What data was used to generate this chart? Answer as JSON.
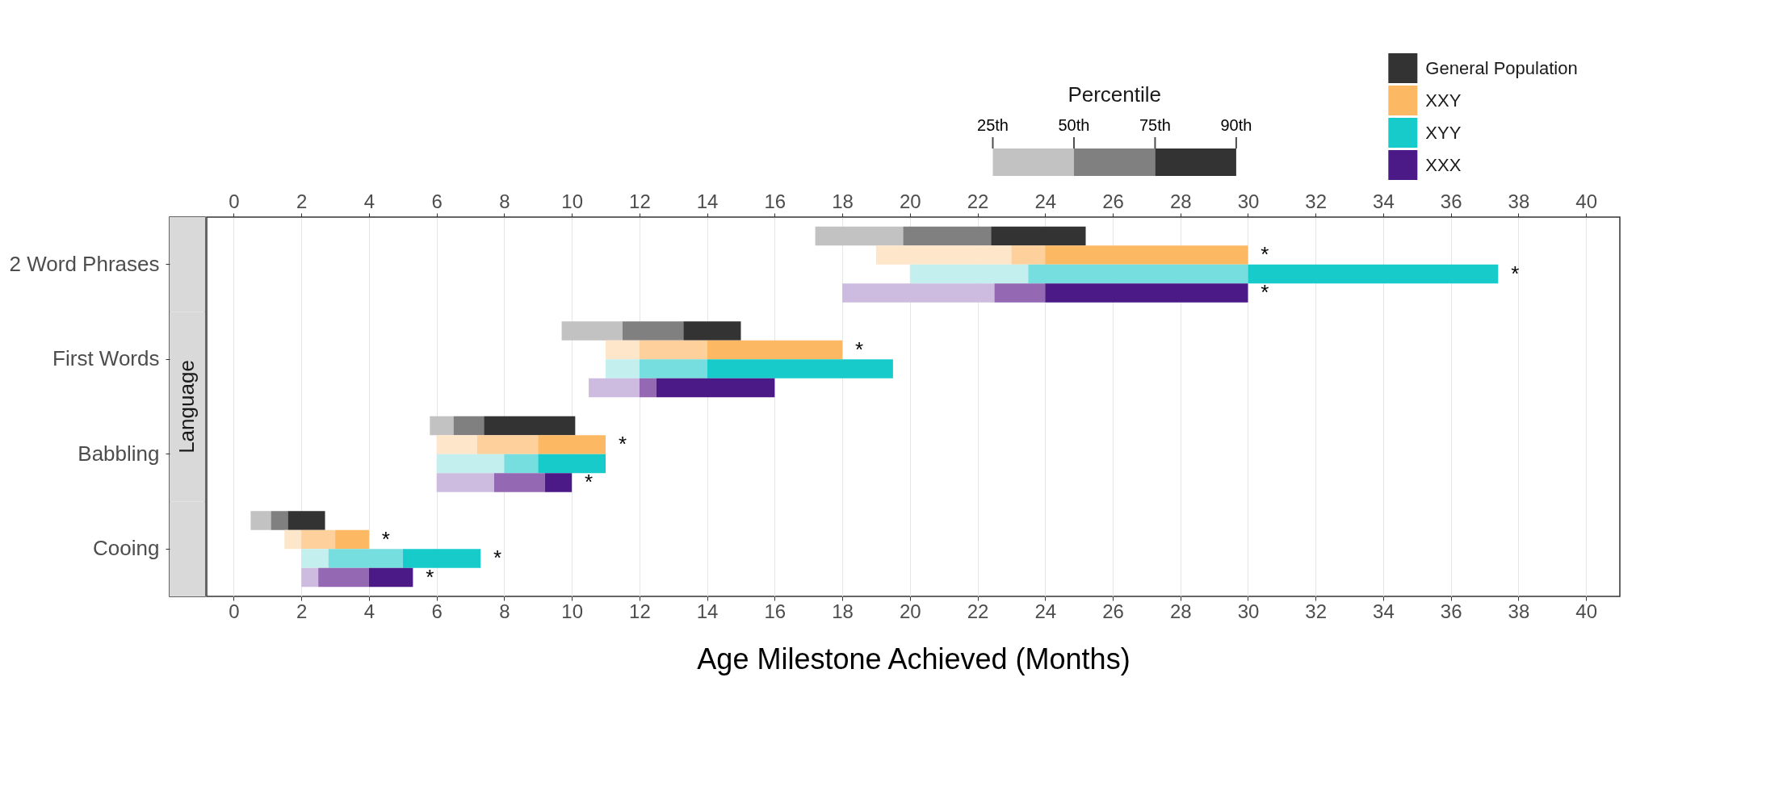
{
  "chart_data": {
    "type": "bar",
    "orientation": "horizontal",
    "xlabel": "Age Milestone Achieved (Months)",
    "legend_title": "Percentile",
    "legend": "top right",
    "grid": true,
    "annotations": [
      "Language",
      "25th",
      "50th",
      "75th",
      "90th"
    ],
    "categories": [
      "2 Word Phrases",
      "First Words",
      "Babbling",
      "Cooing"
    ],
    "xlim": [
      -0.8,
      41
    ],
    "xticks": [
      0,
      2,
      4,
      6,
      8,
      10,
      12,
      14,
      16,
      18,
      20,
      22,
      24,
      26,
      28,
      30,
      32,
      34,
      36,
      38,
      40
    ],
    "x2lim": [
      -0.8,
      41
    ],
    "x2ticks": [
      0,
      2,
      4,
      6,
      8,
      10,
      12,
      14,
      16,
      18,
      20,
      22,
      24,
      26,
      28,
      30,
      32,
      34,
      36,
      38,
      40
    ],
    "series": [
      {
        "color": "#c2c2c2",
        "values": [
          2.6,
          1.8,
          0.7,
          0.6
        ],
        "base": [
          17.2,
          9.7,
          5.8,
          0.5
        ]
      },
      {
        "color": "#808080",
        "values": [
          2.6,
          1.8,
          0.9,
          0.5
        ],
        "base": [
          19.8,
          11.5,
          6.5,
          1.1
        ]
      },
      {
        "name": "General Population",
        "color": "#333333",
        "values": [
          2.8,
          1.7,
          2.7,
          1.1
        ],
        "base": [
          22.4,
          13.3,
          7.4,
          1.6
        ]
      },
      {
        "color": "#fee6cb",
        "values": [
          4,
          1,
          1.2,
          0.5
        ],
        "base": [
          19,
          11,
          6,
          1.5
        ]
      },
      {
        "color": "#fdd09c",
        "values": [
          1,
          2,
          1.8,
          1
        ],
        "base": [
          23,
          12,
          7.2,
          2
        ]
      },
      {
        "name": "XXY",
        "color": "#fdb863",
        "values": [
          6,
          4,
          2,
          1
        ],
        "base": [
          24,
          14,
          9,
          3
        ],
        "value_labels": [
          "*",
          "*",
          "*",
          "*"
        ]
      },
      {
        "color": "#c3efef",
        "values": [
          3.5,
          1,
          2,
          0.8
        ],
        "base": [
          20,
          11,
          6,
          2
        ]
      },
      {
        "color": "#76dede",
        "values": [
          6.5,
          2,
          1,
          2.2
        ],
        "base": [
          23.5,
          12,
          8,
          2.8
        ]
      },
      {
        "name": "XYY",
        "color": "#17cbcb",
        "values": [
          7.4,
          5.5,
          2,
          2.3
        ],
        "base": [
          30,
          14,
          9,
          5
        ],
        "value_labels": [
          "*",
          null,
          null,
          "*"
        ]
      },
      {
        "color": "#cdbcdf",
        "values": [
          4.5,
          1.5,
          1.7,
          0.5
        ],
        "base": [
          18,
          10.5,
          6,
          2
        ]
      },
      {
        "color": "#9468b3",
        "values": [
          1.5,
          0.5,
          1.5,
          1.5
        ],
        "base": [
          22.5,
          12,
          7.7,
          2.5
        ]
      },
      {
        "name": "XXX",
        "color": "#4b1a87",
        "values": [
          6,
          3.5,
          0.8,
          1.3
        ],
        "base": [
          24,
          12.5,
          9.2,
          4
        ],
        "value_labels": [
          "*",
          null,
          "*",
          "*"
        ]
      }
    ]
  }
}
